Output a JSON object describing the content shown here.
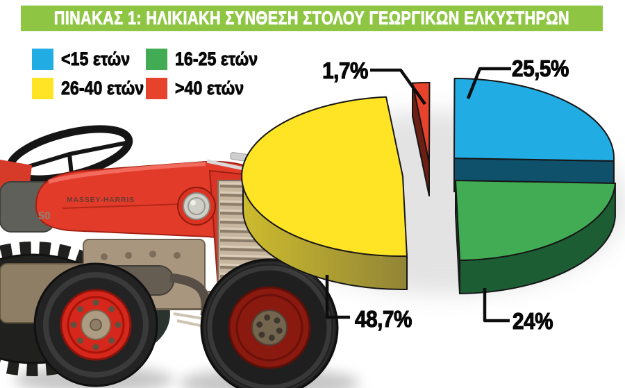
{
  "title_bar_color": "#8EC643",
  "chart_data": {
    "type": "pie",
    "style": "3d-exploded",
    "title": "ΠΙΝΑΚΑΣ 1: ΗΛΙΚΙΑΚΗ ΣΥΝΘΕΣΗ ΣΤΟΛΟΥ ΓΕΩΡΓΙΚΩΝ ΕΛΚΥΣΤΗΡΩΝ",
    "unit": "%",
    "legend_position": "top-left",
    "start_angle_deg": 96,
    "direction": "clockwise",
    "slices": [
      {
        "label": "<15 ετών",
        "value": 25.5,
        "display": "25,5%",
        "color": "#21ACE4",
        "side_color": "#0F506B"
      },
      {
        "label": "16-25 ετών",
        "value": 24,
        "display": "24%",
        "color": "#42AC55",
        "side_color": "#1C5D33"
      },
      {
        "label": "26-40 ετών",
        "value": 48.7,
        "display": "48,7%",
        "color": "#FFE426",
        "side_color": [
          "#CDBB2D",
          "#8A7E38"
        ]
      },
      {
        "label": ">40 ετών",
        "value": 1.7,
        "display": "1,7%",
        "color": "#E7422B",
        "side_color": "#6B2013"
      }
    ]
  },
  "tractor": {
    "brand": "MASSEY-HARRIS",
    "model": "50"
  }
}
